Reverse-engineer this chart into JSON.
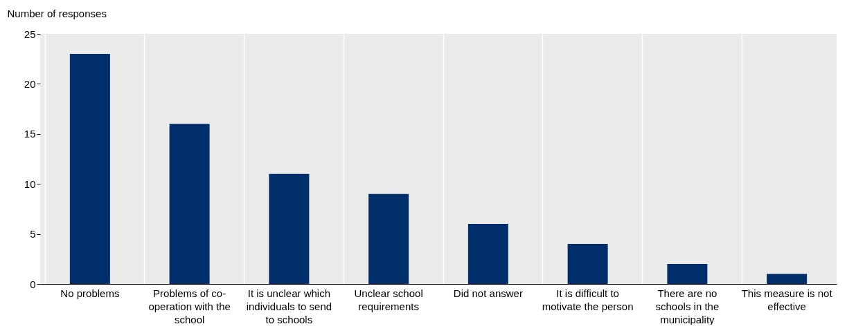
{
  "chart_data": {
    "type": "bar",
    "ylabel": "Number of responses",
    "categories": [
      "No problems",
      "Problems of co-operation with the school",
      "It is unclear which individuals to send to schools",
      "Unclear school requirements",
      "Did not answer",
      "It is difficult to motivate the person",
      "There are no schools in the municipality",
      "This measure is not effective"
    ],
    "values": [
      23,
      16,
      11,
      9,
      6,
      4,
      2,
      1
    ],
    "color": "#002f6c",
    "ylim": [
      0,
      25
    ],
    "yticks": [
      0,
      5,
      10,
      15,
      20,
      25
    ],
    "grid": "x"
  }
}
